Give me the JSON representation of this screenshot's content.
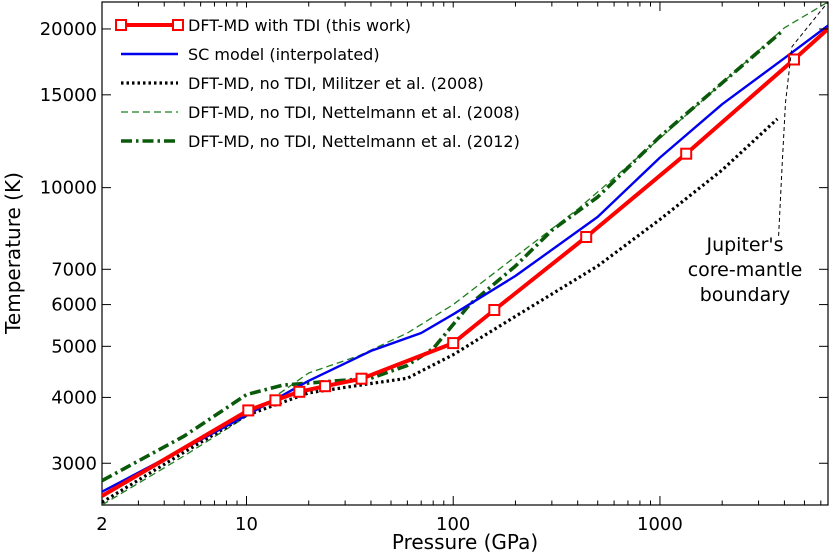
{
  "chart_data": {
    "type": "line",
    "title": "",
    "xlabel": "Pressure (GPa)",
    "ylabel": "Temperature (K)",
    "xscale": "log",
    "yscale": "log",
    "xlim": [
      2,
      6500
    ],
    "ylim": [
      2500,
      22500
    ],
    "grid": false,
    "legend_position": "top-left",
    "x_ticks": [
      {
        "value": 2,
        "label": "2"
      },
      {
        "value": 10,
        "label": "10"
      },
      {
        "value": 100,
        "label": "100"
      },
      {
        "value": 1000,
        "label": "1000"
      }
    ],
    "y_ticks": [
      {
        "value": 3000,
        "label": "3000"
      },
      {
        "value": 4000,
        "label": "4000"
      },
      {
        "value": 5000,
        "label": "5000"
      },
      {
        "value": 6000,
        "label": "6000"
      },
      {
        "value": 7000,
        "label": "7000"
      },
      {
        "value": 10000,
        "label": "10000"
      },
      {
        "value": 15000,
        "label": "15000"
      },
      {
        "value": 20000,
        "label": "20000"
      }
    ],
    "series": [
      {
        "name": "DFT-MD with TDI (this work)",
        "color": "#ff0000",
        "style": "solid-markers",
        "x": [
          2,
          10.2,
          13.8,
          18,
          24,
          36,
          100,
          158,
          440,
          1340,
          4450,
          6500
        ],
        "y": [
          2600,
          3780,
          3950,
          4100,
          4200,
          4340,
          5070,
          5860,
          8060,
          11600,
          17500,
          20000
        ],
        "marker_x": [
          10.2,
          13.8,
          18,
          24,
          36,
          100,
          158,
          440,
          1340,
          4450
        ],
        "marker_y": [
          3780,
          3950,
          4100,
          4200,
          4340,
          5070,
          5860,
          8060,
          11600,
          17500
        ]
      },
      {
        "name": "SC model (interpolated)",
        "color": "#0000ee",
        "style": "solid",
        "x": [
          2,
          5,
          10,
          20,
          40,
          70,
          100,
          200,
          500,
          1000,
          2000,
          4000,
          6500
        ],
        "y": [
          2650,
          3200,
          3700,
          4300,
          4900,
          5300,
          5750,
          6800,
          8800,
          11400,
          14400,
          17600,
          20300
        ]
      },
      {
        "name": "DFT-MD, no TDI, Militzer et al. (2008)",
        "color": "#000000",
        "style": "dotted",
        "x": [
          2,
          5,
          10,
          20,
          40,
          60,
          100,
          200,
          500,
          1000,
          2000,
          3700
        ],
        "y": [
          2530,
          3150,
          3700,
          4080,
          4250,
          4350,
          4820,
          5700,
          7100,
          8700,
          10800,
          13500
        ]
      },
      {
        "name": "DFT-MD, no TDI, Nettelmann et al. (2008)",
        "color": "#1e7f1e",
        "style": "dashed",
        "x": [
          2,
          5,
          10,
          20,
          35,
          60,
          100,
          200,
          400,
          1000,
          2000,
          4000,
          6500
        ],
        "y": [
          2500,
          3100,
          3680,
          4450,
          4800,
          5300,
          6000,
          7400,
          9100,
          12400,
          15800,
          20100,
          22500
        ]
      },
      {
        "name": "DFT-MD, no TDI, Nettelmann et al. (2012)",
        "color": "#0b5a0b",
        "style": "dashdot",
        "x": [
          2,
          5,
          10,
          15,
          25,
          40,
          60,
          80,
          120,
          200,
          300,
          500,
          1000,
          2000,
          3900
        ],
        "y": [
          2780,
          3380,
          4050,
          4220,
          4290,
          4350,
          4600,
          4950,
          6000,
          7100,
          8300,
          9600,
          12500,
          15800,
          19800
        ]
      }
    ],
    "boundary_line": {
      "x": [
        3750,
        3900,
        4050,
        4350,
        6500
      ],
      "y": [
        8100,
        11000,
        14500,
        18500,
        22500
      ]
    },
    "annotation": {
      "lines": [
        "Jupiter's",
        "core-mantle",
        "boundary"
      ]
    }
  }
}
